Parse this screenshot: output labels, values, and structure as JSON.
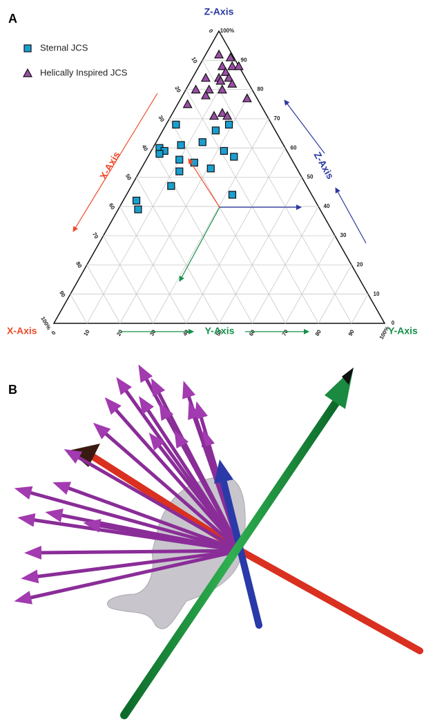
{
  "panel_a_label": "A",
  "panel_b_label": "B",
  "chart_data": {
    "type": "ternary",
    "x_label": "X-Axis",
    "y_label": "Y-Axis",
    "z_label": "Z-Axis",
    "x_side_label": "X-Axis",
    "y_side_label": "Y-Axis",
    "z_side_label": "Z-Axis",
    "grid": true,
    "xticks": [
      0,
      10,
      20,
      30,
      40,
      50,
      60,
      70,
      80,
      90,
      {
        "value": 100,
        "label": "100%"
      }
    ],
    "yticks": [
      0,
      10,
      20,
      30,
      40,
      50,
      60,
      70,
      80,
      90,
      {
        "value": 100,
        "label": "100%"
      }
    ],
    "zticks": [
      0,
      10,
      20,
      30,
      40,
      50,
      60,
      70,
      80,
      90,
      {
        "value": 100,
        "label": "100%"
      }
    ],
    "series": [
      {
        "name": "Sternal JCS",
        "color": "#1a9fd0",
        "marker": "square",
        "x": [
          29,
          38,
          37,
          39,
          31,
          34,
          36,
          41,
          30,
          26,
          24,
          18,
          13,
          19,
          17,
          24,
          54,
          55
        ],
        "y": [
          3,
          2,
          4,
          3,
          8,
          10,
          12,
          12,
          15,
          21,
          14,
          16,
          19,
          22,
          26,
          32,
          4,
          6
        ],
        "z": [
          68,
          60,
          59,
          58,
          61,
          56,
          52,
          47,
          55,
          53,
          62,
          66,
          68,
          59,
          57,
          44,
          42,
          39
        ]
      },
      {
        "name": "Helically Inspired JCS",
        "color": "#9a4ea6",
        "marker": "triangle",
        "x": [
          4,
          1,
          5,
          2,
          0,
          5,
          8,
          5,
          8,
          5,
          12,
          17,
          13,
          9,
          22,
          15,
          16,
          13,
          12,
          3
        ],
        "y": [
          4,
          8,
          7,
          10,
          12,
          9,
          8,
          11,
          9,
          13,
          4,
          3,
          7,
          11,
          3,
          7,
          13,
          15,
          17,
          20
        ],
        "z": [
          92,
          91,
          88,
          88,
          88,
          86,
          84,
          84,
          83,
          82,
          84,
          80,
          80,
          80,
          75,
          78,
          71,
          72,
          71,
          77
        ]
      }
    ]
  }
}
